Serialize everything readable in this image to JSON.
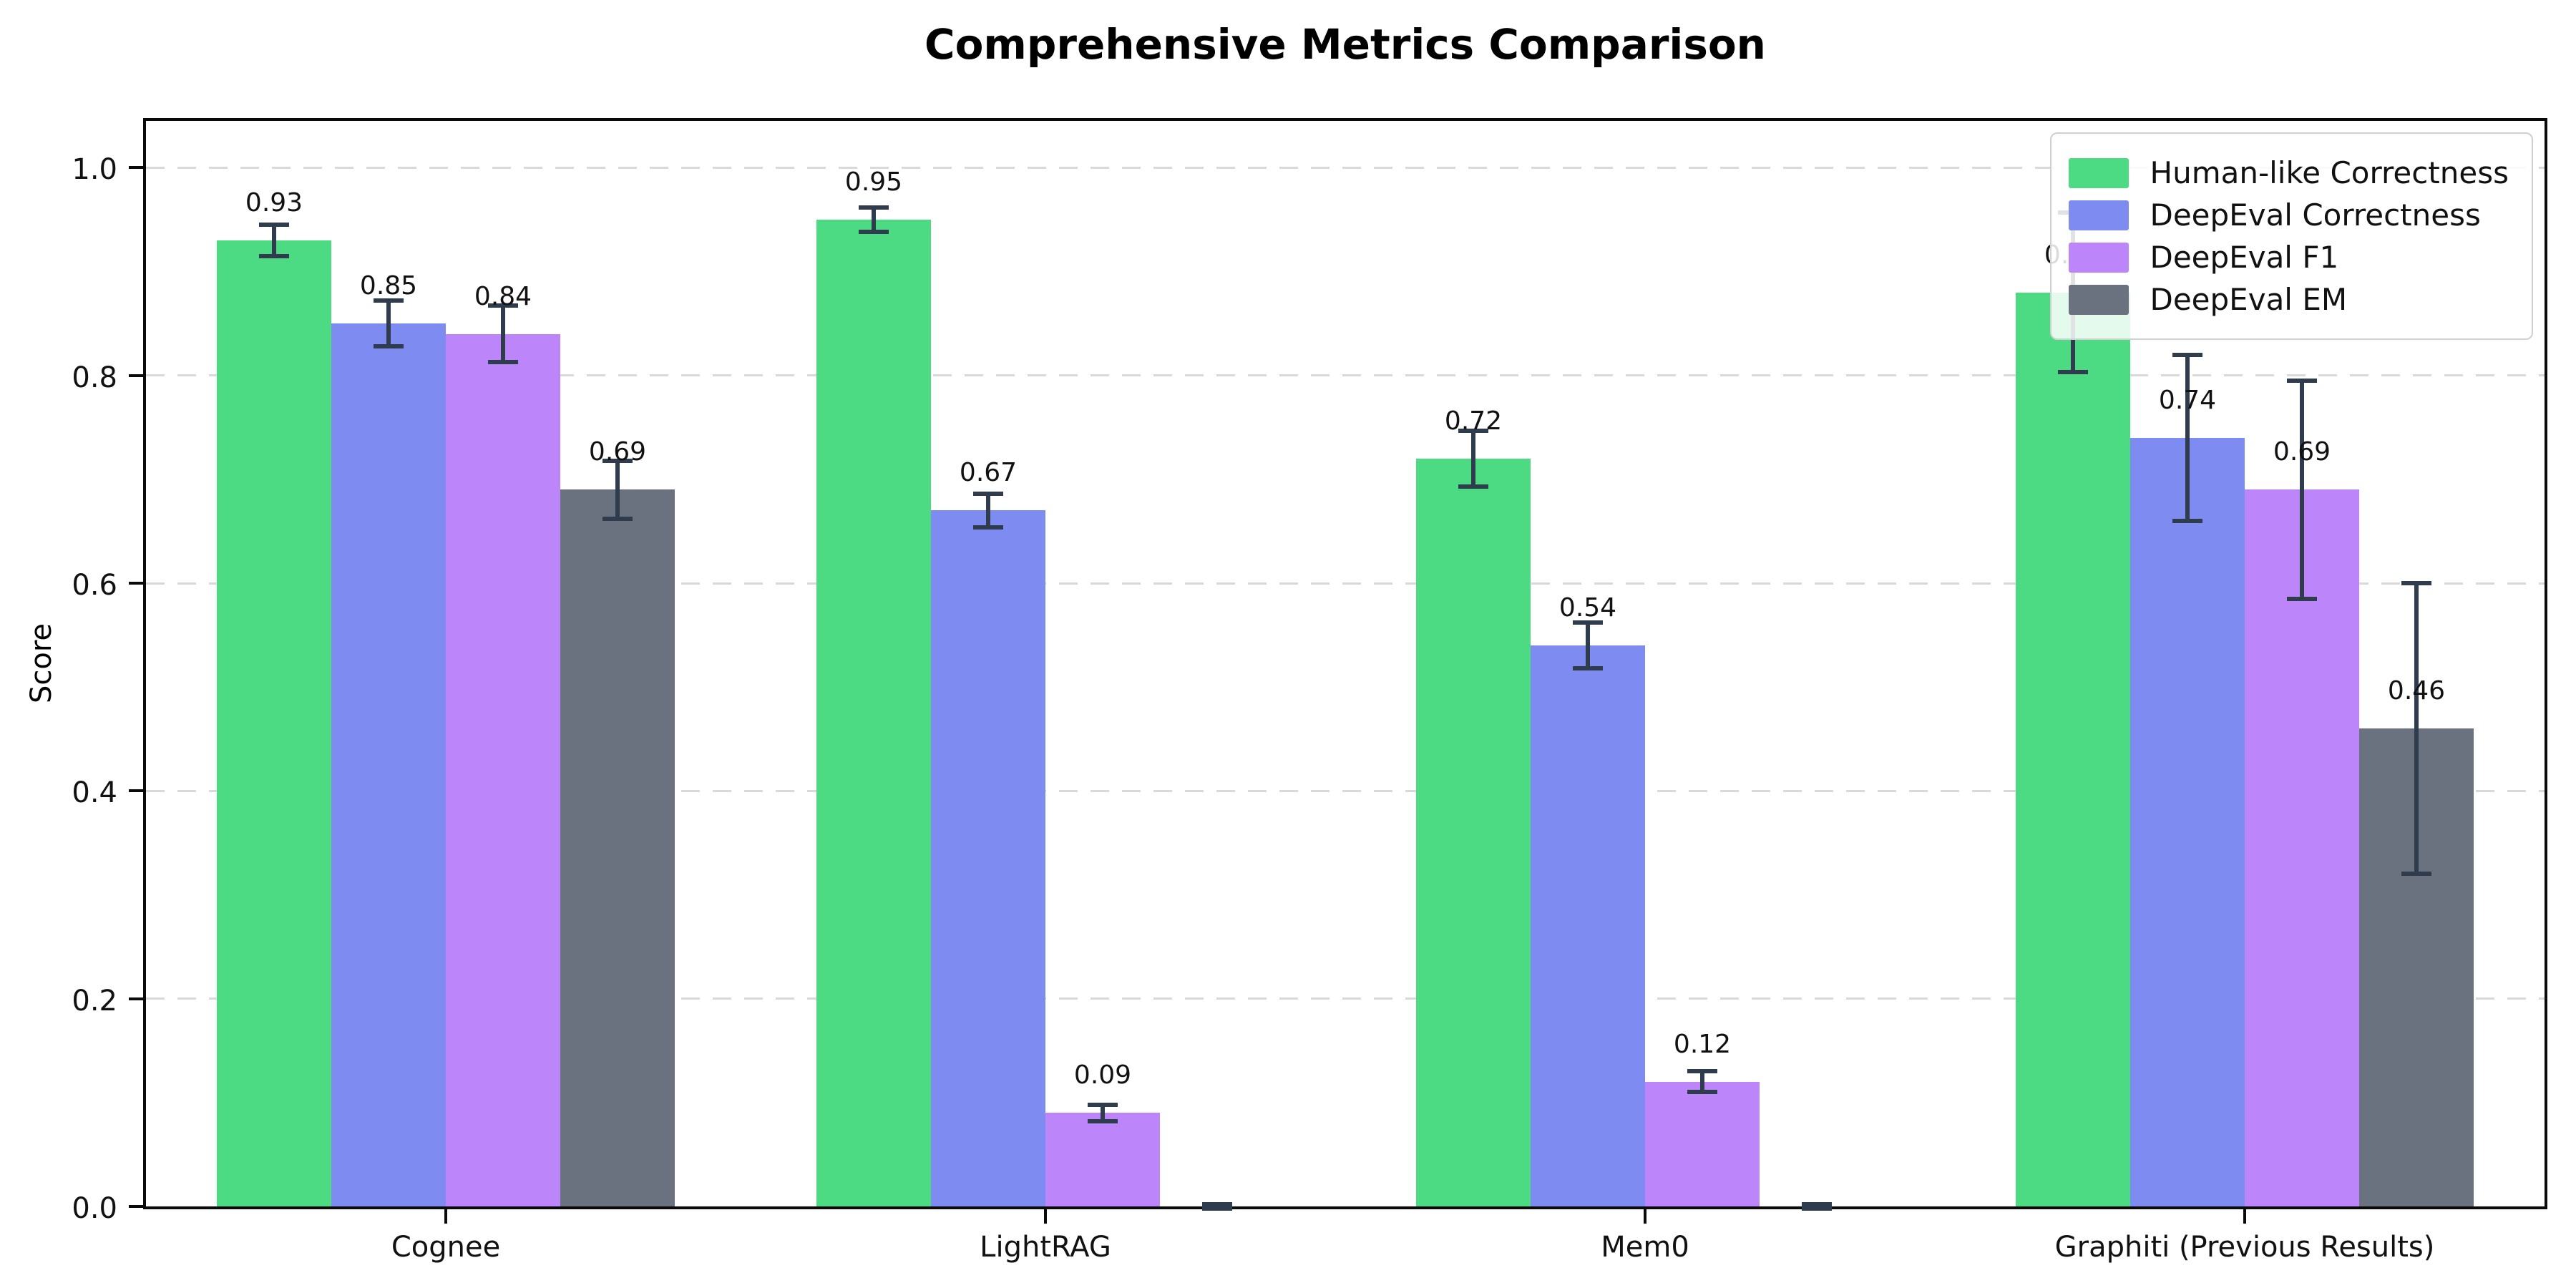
{
  "chart_data": {
    "type": "bar",
    "title": "Comprehensive Metrics Comparison",
    "xlabel": "",
    "ylabel": "Score",
    "ylim": [
      0,
      1.045
    ],
    "yticks": [
      0.0,
      0.2,
      0.4,
      0.6,
      0.8,
      1.0
    ],
    "ytick_labels": [
      "0.0",
      "0.2",
      "0.4",
      "0.6",
      "0.8",
      "1.0"
    ],
    "grid": "horizontal-dashed",
    "grid_color": "#d9d9d9",
    "error_bar_color": "#2e3c4e",
    "legend_position": "upper right",
    "categories": [
      "Cognee",
      "LightRAG",
      "Mem0",
      "Graphiti (Previous Results)"
    ],
    "series": [
      {
        "name": "Human-like Correctness",
        "color": "#4cdb82",
        "values": [
          0.93,
          0.95,
          0.72,
          0.88
        ],
        "errors": [
          0.015,
          0.012,
          0.027,
          0.077
        ],
        "labels": [
          "0.93",
          "0.95",
          "0.72",
          "0.88"
        ]
      },
      {
        "name": "DeepEval Correctness",
        "color": "#7e8cf2",
        "values": [
          0.85,
          0.67,
          0.54,
          0.74
        ],
        "errors": [
          0.022,
          0.016,
          0.022,
          0.08
        ],
        "labels": [
          "0.85",
          "0.67",
          "0.54",
          "0.74"
        ]
      },
      {
        "name": "DeepEval F1",
        "color": "#bd85fa",
        "values": [
          0.84,
          0.09,
          0.12,
          0.69
        ],
        "errors": [
          0.027,
          0.008,
          0.01,
          0.105
        ],
        "labels": [
          "0.84",
          "0.09",
          "0.12",
          "0.69"
        ]
      },
      {
        "name": "DeepEval EM",
        "color": "#6a7280",
        "values": [
          0.69,
          0.0,
          0.0,
          0.46
        ],
        "errors": [
          0.028,
          0.002,
          0.002,
          0.14
        ],
        "labels": [
          "0.69",
          "",
          "",
          "0.46"
        ]
      }
    ]
  }
}
